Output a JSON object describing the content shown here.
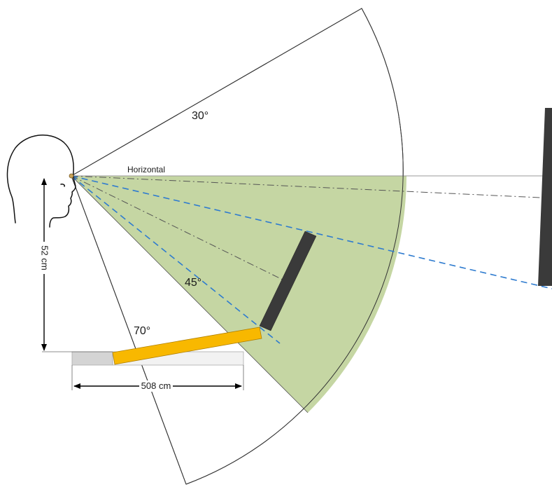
{
  "labels": {
    "angle_30": "30°",
    "horizontal": "Horizontal",
    "angle_45": "45°",
    "angle_70": "70°",
    "height": "52 cm",
    "width": "508 cm"
  },
  "colors": {
    "zone_fill": "#c5d6a3",
    "screen": "#3a3a3a",
    "keyboard": "#f8b800",
    "sight_line": "#2e7bcf",
    "guide_line": "#555555",
    "desk_left": "#d4d4d4",
    "desk_right": "#f2f2f2"
  },
  "icons": {
    "viewer": "head-profile-icon"
  }
}
